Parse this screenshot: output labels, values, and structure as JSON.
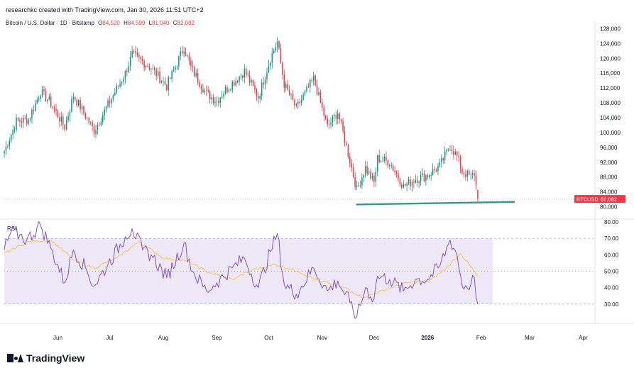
{
  "header": {
    "created_by": "researchkc created with TradingView.com, Jan 30, 2026 11:51 UTC+2"
  },
  "symbol": {
    "name": "Bitcoin / U.S. Dollar · 1D · Bitstamp",
    "open_label": "O",
    "open": "84,520",
    "high_label": "H",
    "high": "84,599",
    "low_label": "L",
    "low": "81,040",
    "close_label": "C",
    "close": "82,082"
  },
  "price_tag": {
    "ticker": "BTCUSD",
    "price": "82,082",
    "color": "#f23645"
  },
  "rsi_label": "RSI",
  "footer": {
    "brand": "TradingView"
  },
  "colors": {
    "up": "#089981",
    "down": "#f23645",
    "rsi": "#7e57c2",
    "rsi_ma": "#f7c948",
    "support": "#2e9e82",
    "rsi_band": "#ede7f6"
  },
  "chart_data": [
    {
      "type": "candlestick",
      "title": "Bitcoin / U.S. Dollar · 1D · Bitstamp",
      "x_range": [
        "2025-05-01",
        "2026-04-07"
      ],
      "ylim": [
        78000,
        130000
      ],
      "y_ticks": [
        80000,
        84000,
        88000,
        92000,
        96000,
        100000,
        104000,
        108000,
        112000,
        116000,
        120000,
        124000,
        128000
      ],
      "y_tick_labels": [
        "80,000",
        "84,000",
        "88,000",
        "92,000",
        "96,000",
        "100,000",
        "104,000",
        "108,000",
        "112,000",
        "116,000",
        "120,000",
        "124,000",
        "128,000"
      ],
      "x_ticks": [
        "2025-06-01",
        "2025-07-01",
        "2025-08-01",
        "2025-09-01",
        "2025-10-01",
        "2025-11-01",
        "2025-12-01",
        "2026-01-01",
        "2026-02-01",
        "2026-03-01",
        "2026-04-01"
      ],
      "x_tick_labels": [
        "Jun",
        "Jul",
        "Aug",
        "Sep",
        "Oct",
        "Nov",
        "Dec",
        "2026",
        "Feb",
        "Mar",
        "Apr"
      ],
      "close_anchors": [
        [
          "2025-05-01",
          95000
        ],
        [
          "2025-05-08",
          103000
        ],
        [
          "2025-05-15",
          103500
        ],
        [
          "2025-05-22",
          111000
        ],
        [
          "2025-05-27",
          108500
        ],
        [
          "2025-06-05",
          101500
        ],
        [
          "2025-06-10",
          110000
        ],
        [
          "2025-06-17",
          104500
        ],
        [
          "2025-06-22",
          100500
        ],
        [
          "2025-06-30",
          107500
        ],
        [
          "2025-07-10",
          116000
        ],
        [
          "2025-07-14",
          121000
        ],
        [
          "2025-07-25",
          117500
        ],
        [
          "2025-08-03",
          112500
        ],
        [
          "2025-08-13",
          123000
        ],
        [
          "2025-08-17",
          117500
        ],
        [
          "2025-08-26",
          110500
        ],
        [
          "2025-09-01",
          108500
        ],
        [
          "2025-09-05",
          111000
        ],
        [
          "2025-09-17",
          116500
        ],
        [
          "2025-09-25",
          109500
        ],
        [
          "2025-10-02",
          120000
        ],
        [
          "2025-10-06",
          124500
        ],
        [
          "2025-10-10",
          113000
        ],
        [
          "2025-10-17",
          106500
        ],
        [
          "2025-10-27",
          114500
        ],
        [
          "2025-11-04",
          101500
        ],
        [
          "2025-11-10",
          105500
        ],
        [
          "2025-11-17",
          92500
        ],
        [
          "2025-11-21",
          84500
        ],
        [
          "2025-11-26",
          90500
        ],
        [
          "2025-12-01",
          86500
        ],
        [
          "2025-12-03",
          93000
        ],
        [
          "2025-12-10",
          92000
        ],
        [
          "2025-12-18",
          85500
        ],
        [
          "2025-12-25",
          87500
        ],
        [
          "2026-01-01",
          88500
        ],
        [
          "2026-01-08",
          91000
        ],
        [
          "2026-01-14",
          96500
        ],
        [
          "2026-01-18",
          93500
        ],
        [
          "2026-01-21",
          89500
        ],
        [
          "2026-01-26",
          88000
        ],
        [
          "2026-01-28",
          89000
        ],
        [
          "2026-01-30",
          82082
        ]
      ],
      "last_candle": {
        "date": "2026-01-30",
        "open": 84520,
        "high": 84599,
        "low": 81040,
        "close": 82082
      },
      "support_line": {
        "start": [
          "2025-11-21",
          80600
        ],
        "end": [
          "2026-02-20",
          81300
        ]
      }
    },
    {
      "type": "line",
      "title": "RSI",
      "ylim": [
        20,
        80
      ],
      "y_ticks": [
        30,
        40,
        50,
        60,
        70,
        80
      ],
      "y_tick_labels": [
        "30.00",
        "40.00",
        "50.00",
        "60.00",
        "70.00",
        "80.00"
      ],
      "bands": [
        30,
        50,
        70
      ],
      "series": [
        {
          "name": "RSI",
          "points": [
            [
              "2025-05-01",
              63
            ],
            [
              "2025-05-05",
              74
            ],
            [
              "2025-05-10",
              72
            ],
            [
              "2025-05-14",
              69
            ],
            [
              "2025-05-22",
              78
            ],
            [
              "2025-05-28",
              64
            ],
            [
              "2025-06-05",
              43
            ],
            [
              "2025-06-10",
              63
            ],
            [
              "2025-06-17",
              52
            ],
            [
              "2025-06-22",
              41
            ],
            [
              "2025-06-30",
              54
            ],
            [
              "2025-07-10",
              71
            ],
            [
              "2025-07-14",
              76
            ],
            [
              "2025-07-20",
              63
            ],
            [
              "2025-07-25",
              60
            ],
            [
              "2025-08-03",
              46
            ],
            [
              "2025-08-13",
              67
            ],
            [
              "2025-08-18",
              50
            ],
            [
              "2025-08-26",
              38
            ],
            [
              "2025-09-01",
              43
            ],
            [
              "2025-09-10",
              52
            ],
            [
              "2025-09-17",
              58
            ],
            [
              "2025-09-25",
              40
            ],
            [
              "2025-10-02",
              62
            ],
            [
              "2025-10-06",
              73
            ],
            [
              "2025-10-10",
              42
            ],
            [
              "2025-10-17",
              36
            ],
            [
              "2025-10-27",
              52
            ],
            [
              "2025-11-04",
              38
            ],
            [
              "2025-11-10",
              44
            ],
            [
              "2025-11-17",
              31
            ],
            [
              "2025-11-21",
              22
            ],
            [
              "2025-11-26",
              40
            ],
            [
              "2025-12-01",
              33
            ],
            [
              "2025-12-03",
              47
            ],
            [
              "2025-12-10",
              45
            ],
            [
              "2025-12-18",
              38
            ],
            [
              "2025-12-25",
              45
            ],
            [
              "2026-01-01",
              45
            ],
            [
              "2026-01-08",
              53
            ],
            [
              "2026-01-14",
              69
            ],
            [
              "2026-01-18",
              60
            ],
            [
              "2026-01-21",
              41
            ],
            [
              "2026-01-26",
              42
            ],
            [
              "2026-01-28",
              46
            ],
            [
              "2026-01-30",
              30
            ]
          ]
        },
        {
          "name": "RSI-based MA",
          "points": [
            [
              "2025-05-01",
              61
            ],
            [
              "2025-05-15",
              68
            ],
            [
              "2025-05-28",
              69
            ],
            [
              "2025-06-10",
              57
            ],
            [
              "2025-06-22",
              52
            ],
            [
              "2025-07-05",
              58
            ],
            [
              "2025-07-18",
              68
            ],
            [
              "2025-08-01",
              58
            ],
            [
              "2025-08-15",
              56
            ],
            [
              "2025-08-28",
              49
            ],
            [
              "2025-09-10",
              45
            ],
            [
              "2025-09-22",
              51
            ],
            [
              "2025-10-05",
              54
            ],
            [
              "2025-10-18",
              50
            ],
            [
              "2025-10-30",
              44
            ],
            [
              "2025-11-12",
              41
            ],
            [
              "2025-11-25",
              34
            ],
            [
              "2025-12-08",
              39
            ],
            [
              "2025-12-20",
              43
            ],
            [
              "2026-01-02",
              44
            ],
            [
              "2026-01-12",
              52
            ],
            [
              "2026-01-20",
              61
            ],
            [
              "2026-01-30",
              47
            ]
          ]
        }
      ]
    }
  ]
}
